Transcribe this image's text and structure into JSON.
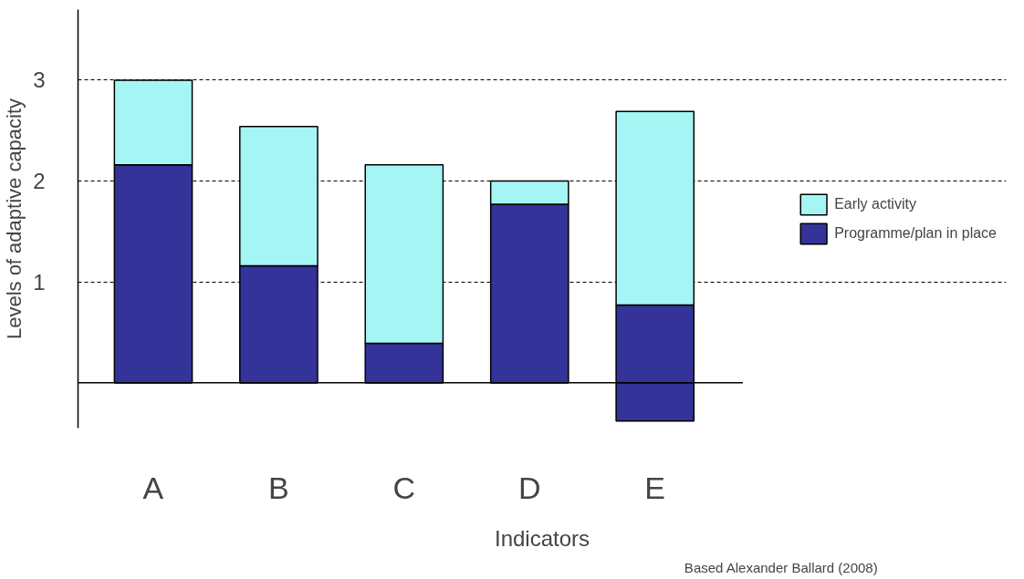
{
  "chart_data": {
    "type": "bar",
    "stacked": true,
    "xlabel": "Indicators",
    "ylabel": "Levels of adaptive capacity",
    "categories": [
      "A",
      "B",
      "C",
      "D",
      "E"
    ],
    "series": [
      {
        "name": "Programme/plan in place",
        "color": "#333399",
        "values": [
          2.16,
          1.16,
          0.39,
          1.77,
          0.77
        ]
      },
      {
        "name": "Early activity",
        "color": "#a6f5f5",
        "values": [
          0.84,
          1.38,
          1.77,
          0.23,
          1.92
        ]
      },
      {
        "color": "#333399",
        "values": [
          null,
          null,
          null,
          null,
          -0.38
        ]
      }
    ],
    "ref_lines": [
      {
        "axis": "y",
        "value": 0,
        "color": "#000000",
        "line_style": "solid"
      }
    ],
    "ylim": [
      -0.45,
      3.7
    ],
    "yticks": [
      1,
      2,
      3
    ],
    "grid": "y",
    "legend": "right",
    "annotations": [
      "Based Alexander Ballard (2008)"
    ]
  }
}
